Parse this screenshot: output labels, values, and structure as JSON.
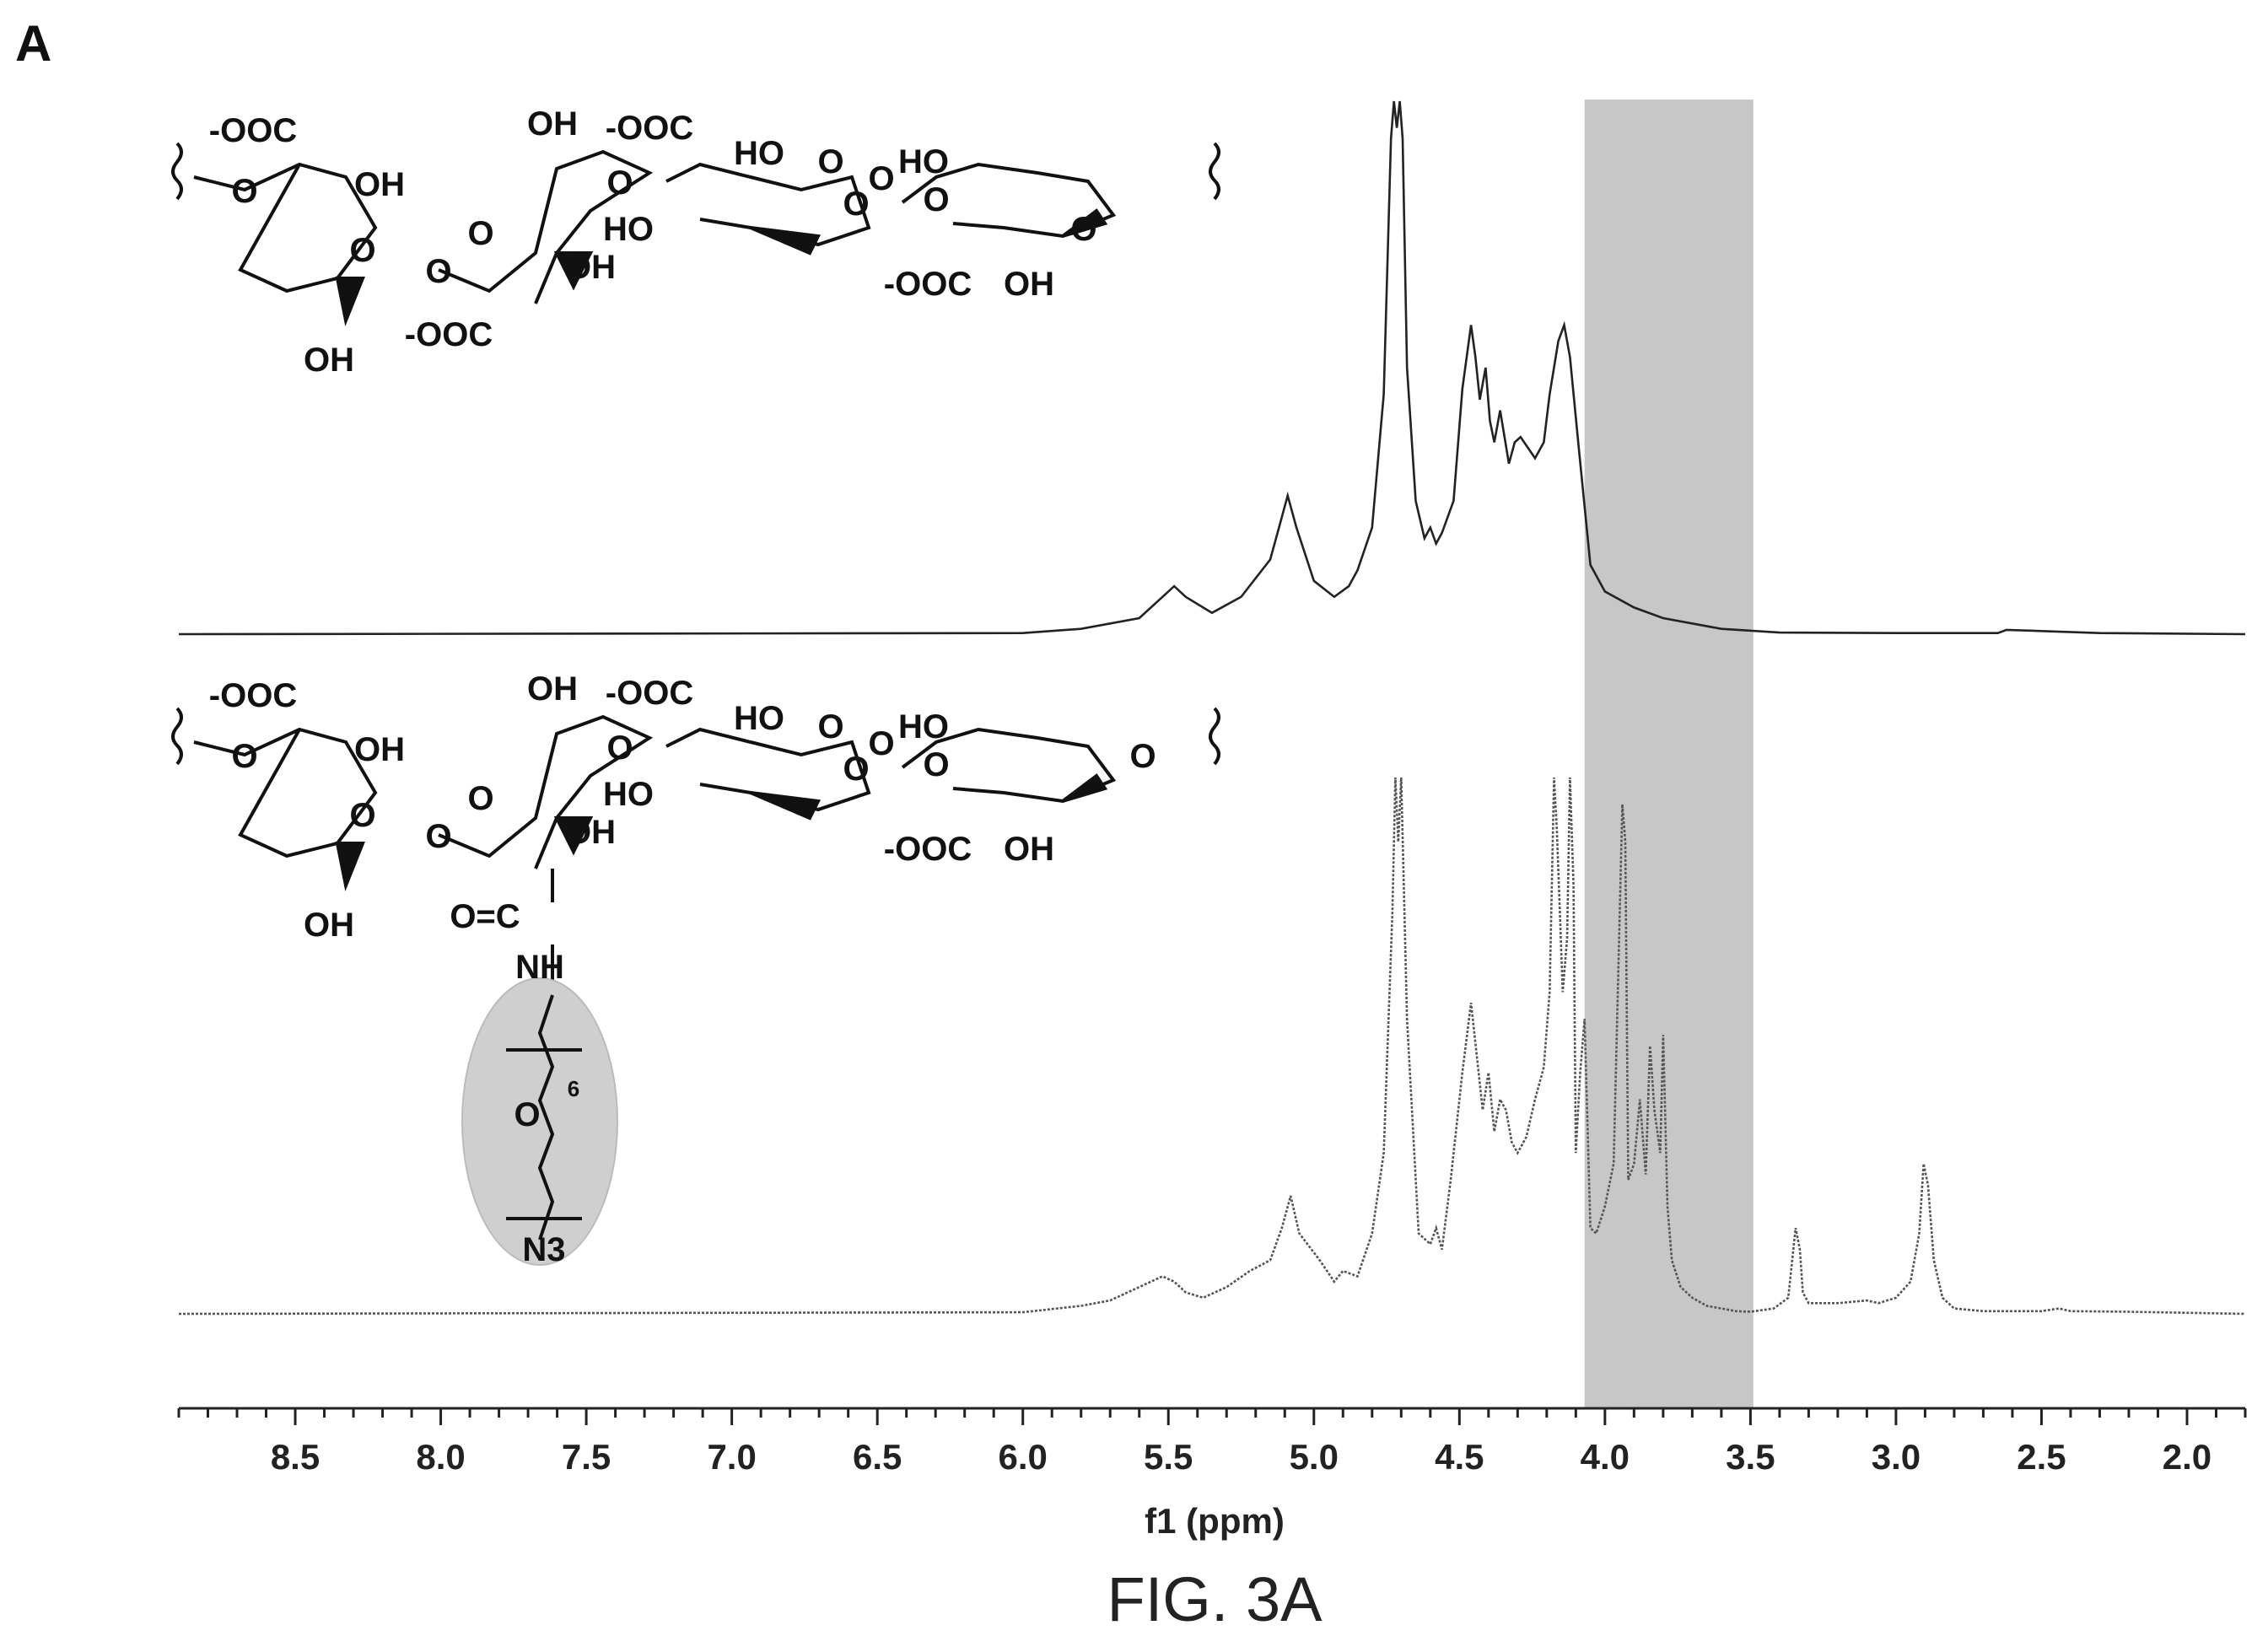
{
  "panel_label": "A",
  "figure_caption": "FIG. 3A",
  "colors": {
    "spectrum_top": "#222222",
    "spectrum_bottom": "#555555",
    "highlight_region": "#bdbdbd",
    "ellipse_highlight": "#cfcfcf",
    "axis": "#222222"
  },
  "structures": {
    "top": {
      "labels": [
        "-OOC",
        "OH",
        "O",
        "O",
        "OH",
        "O",
        "OH",
        "O",
        "O",
        "OH",
        "-OOC",
        "-OOC",
        "HO",
        "O",
        "O",
        "HO",
        "HO",
        "O",
        "O",
        "-OOC",
        "OH",
        "O"
      ]
    },
    "bottom": {
      "labels": [
        "-OOC",
        "OH",
        "O",
        "O",
        "OH",
        "O",
        "OH",
        "O",
        "O",
        "OH",
        "-OOC",
        "HO",
        "O",
        "O",
        "HO",
        "HO",
        "O",
        "O",
        "-OOC",
        "OH",
        "O",
        "O=C",
        "NH",
        "O",
        "6",
        "N3"
      ]
    }
  },
  "chart_data": {
    "type": "line",
    "xlabel": "f1 (ppm)",
    "x_reversed": true,
    "xlim": [
      8.9,
      1.8
    ],
    "x_ticks": [
      "8.5",
      "8.0",
      "7.5",
      "7.0",
      "6.5",
      "6.0",
      "5.5",
      "5.0",
      "4.5",
      "4.0",
      "3.5",
      "3.0",
      "2.5",
      "2.0"
    ],
    "y_axis_shown": false,
    "ylim": [
      0,
      1
    ],
    "highlight_region_ppm": [
      4.07,
      3.49
    ],
    "series": [
      {
        "style": "solid",
        "x": [
          8.9,
          6.0,
          5.8,
          5.6,
          5.52,
          5.48,
          5.44,
          5.35,
          5.25,
          5.15,
          5.12,
          5.09,
          5.06,
          5.0,
          4.93,
          4.88,
          4.85,
          4.8,
          4.76,
          4.735,
          4.725,
          4.715,
          4.705,
          4.695,
          4.68,
          4.65,
          4.62,
          4.6,
          4.58,
          4.56,
          4.52,
          4.49,
          4.46,
          4.445,
          4.43,
          4.41,
          4.395,
          4.38,
          4.36,
          4.33,
          4.31,
          4.29,
          4.24,
          4.21,
          4.19,
          4.16,
          4.14,
          4.12,
          4.09,
          4.05,
          4.0,
          3.9,
          3.8,
          3.6,
          3.4,
          3.0,
          2.65,
          2.62,
          2.3,
          1.8
        ],
        "y": [
          0.0,
          0.002,
          0.01,
          0.03,
          0.07,
          0.09,
          0.07,
          0.04,
          0.07,
          0.14,
          0.2,
          0.26,
          0.2,
          0.1,
          0.07,
          0.09,
          0.12,
          0.2,
          0.45,
          0.93,
          1.0,
          0.95,
          1.0,
          0.93,
          0.5,
          0.25,
          0.18,
          0.2,
          0.17,
          0.19,
          0.25,
          0.46,
          0.58,
          0.52,
          0.44,
          0.5,
          0.4,
          0.36,
          0.42,
          0.32,
          0.36,
          0.37,
          0.33,
          0.36,
          0.45,
          0.55,
          0.58,
          0.52,
          0.35,
          0.13,
          0.08,
          0.05,
          0.03,
          0.01,
          0.003,
          0.002,
          0.002,
          0.008,
          0.002,
          0.0
        ]
      },
      {
        "style": "dotted",
        "x": [
          8.9,
          6.0,
          5.8,
          5.7,
          5.6,
          5.52,
          5.48,
          5.44,
          5.38,
          5.3,
          5.22,
          5.15,
          5.11,
          5.08,
          5.05,
          4.98,
          4.93,
          4.9,
          4.85,
          4.8,
          4.76,
          4.73,
          4.72,
          4.71,
          4.7,
          4.68,
          4.64,
          4.6,
          4.58,
          4.56,
          4.53,
          4.49,
          4.46,
          4.44,
          4.42,
          4.4,
          4.38,
          4.36,
          4.34,
          4.32,
          4.3,
          4.27,
          4.24,
          4.21,
          4.19,
          4.175,
          4.165,
          4.155,
          4.145,
          4.13,
          4.12,
          4.108,
          4.1,
          4.085,
          4.07,
          4.05,
          4.03,
          4.0,
          3.97,
          3.94,
          3.93,
          3.92,
          3.9,
          3.88,
          3.86,
          3.845,
          3.83,
          3.81,
          3.8,
          3.785,
          3.77,
          3.74,
          3.7,
          3.65,
          3.6,
          3.55,
          3.5,
          3.42,
          3.37,
          3.345,
          3.33,
          3.32,
          3.3,
          3.2,
          3.1,
          3.06,
          3.0,
          2.95,
          2.92,
          2.905,
          2.89,
          2.87,
          2.84,
          2.8,
          2.7,
          2.5,
          2.44,
          2.4,
          2.2,
          1.8
        ],
        "y": [
          0.0,
          0.003,
          0.015,
          0.025,
          0.05,
          0.07,
          0.06,
          0.04,
          0.03,
          0.05,
          0.08,
          0.1,
          0.16,
          0.22,
          0.15,
          0.1,
          0.06,
          0.08,
          0.07,
          0.15,
          0.3,
          0.75,
          1.0,
          0.88,
          1.0,
          0.55,
          0.15,
          0.13,
          0.16,
          0.12,
          0.25,
          0.45,
          0.58,
          0.48,
          0.38,
          0.45,
          0.34,
          0.4,
          0.38,
          0.32,
          0.3,
          0.33,
          0.4,
          0.46,
          0.6,
          1.0,
          0.9,
          0.75,
          0.6,
          0.7,
          1.0,
          0.8,
          0.3,
          0.45,
          0.55,
          0.16,
          0.15,
          0.2,
          0.28,
          0.95,
          0.88,
          0.25,
          0.28,
          0.4,
          0.26,
          0.5,
          0.38,
          0.3,
          0.52,
          0.2,
          0.1,
          0.05,
          0.03,
          0.015,
          0.01,
          0.005,
          0.004,
          0.01,
          0.03,
          0.16,
          0.12,
          0.04,
          0.02,
          0.02,
          0.025,
          0.02,
          0.03,
          0.06,
          0.15,
          0.28,
          0.24,
          0.1,
          0.03,
          0.01,
          0.005,
          0.005,
          0.01,
          0.005,
          0.004,
          0.0
        ]
      }
    ]
  }
}
